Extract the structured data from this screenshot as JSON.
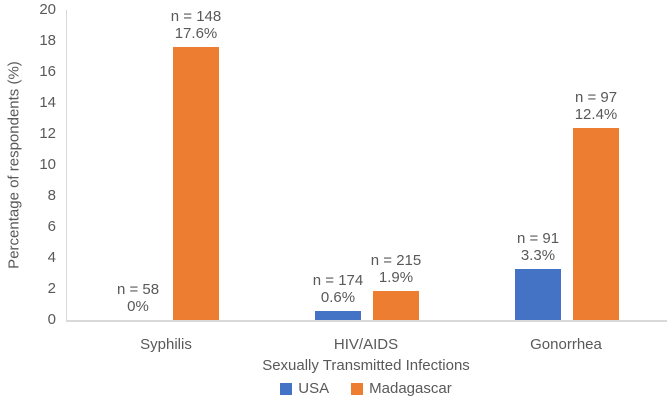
{
  "chart_data": {
    "type": "bar",
    "title": "",
    "xlabel": "Sexually Transmitted Infections",
    "ylabel": "Percentage of respondents (%)",
    "ylim": [
      0,
      20
    ],
    "ytick_step": 2,
    "grid": false,
    "legend_position": "bottom",
    "categories": [
      "Syphilis",
      "HIV/AIDS",
      "Gonorrhea"
    ],
    "series": [
      {
        "name": "USA",
        "color": "#4472C4",
        "values": [
          0,
          0.6,
          3.3
        ],
        "sample_sizes": [
          58,
          174,
          91
        ],
        "bar_labels": [
          [
            "n = 58",
            "0%"
          ],
          [
            "n = 174",
            "0.6%"
          ],
          [
            "n = 91",
            "3.3%"
          ]
        ]
      },
      {
        "name": "Madagascar",
        "color": "#ED7D31",
        "values": [
          17.6,
          1.9,
          12.4
        ],
        "sample_sizes": [
          148,
          215,
          97
        ],
        "bar_labels": [
          [
            "n = 148",
            "17.6%"
          ],
          [
            "n = 215",
            "1.9%"
          ],
          [
            "n = 97",
            "12.4%"
          ]
        ]
      }
    ],
    "colors": {
      "axis_line": "#D9D9D9",
      "text": "#595959",
      "background": "#FFFFFF"
    }
  }
}
